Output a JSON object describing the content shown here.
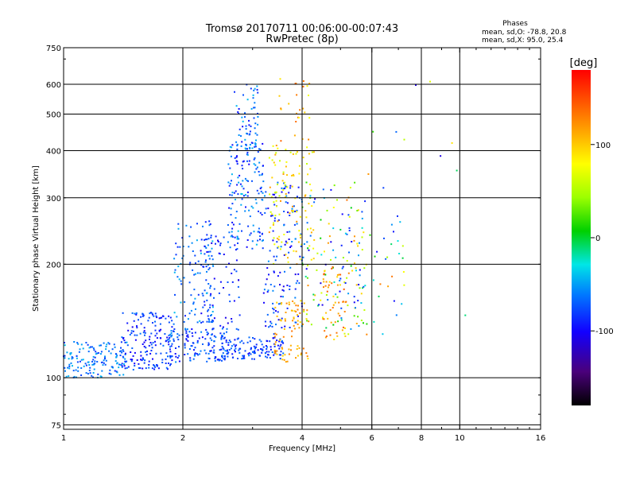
{
  "chart_data": {
    "type": "scatter",
    "title": "Tromsø 20170711 00:06:00-00:07:43",
    "subtitle": "RwPretec (8p)",
    "xlabel": "Frequency [MHz]",
    "ylabel": "Stationary phase Virtual Height [km]",
    "x_scale": "log",
    "y_scale": "log",
    "xlim": [
      1,
      16
    ],
    "ylim": [
      73,
      750
    ],
    "x_ticks": [
      1,
      2,
      4,
      6,
      8,
      10,
      16
    ],
    "x_tick_labels": [
      "1",
      "2",
      "4",
      "6",
      "8",
      "10",
      "16"
    ],
    "y_ticks": [
      75,
      100,
      200,
      300,
      400,
      500,
      600,
      750
    ],
    "y_tick_labels": [
      "75",
      "100",
      "200",
      "300",
      "400",
      "500",
      "600",
      "750"
    ],
    "grid": true,
    "stats": {
      "title": "Phases",
      "line1": "mean, sd,O: -78.8, 20.8",
      "line2": "mean, sd,X:  95.0, 25.4"
    },
    "colorbar": {
      "label": "[deg]",
      "range": [
        -180,
        180
      ],
      "ticks": [
        100,
        0,
        -100
      ],
      "tick_labels": [
        "100",
        "0",
        "-100"
      ]
    },
    "clusters": [
      {
        "x": [
          1.0,
          1.45
        ],
        "y": [
          100,
          125
        ],
        "phase": [
          -85,
          -40
        ],
        "count": 150
      },
      {
        "x": [
          1.4,
          1.9
        ],
        "y": [
          105,
          150
        ],
        "phase": [
          -105,
          -60
        ],
        "count": 170
      },
      {
        "x": [
          1.85,
          2.6
        ],
        "y": [
          110,
          135
        ],
        "phase": [
          -100,
          -50
        ],
        "count": 140
      },
      {
        "x": [
          2.5,
          3.6
        ],
        "y": [
          112,
          128
        ],
        "phase": [
          -100,
          -60
        ],
        "count": 130
      },
      {
        "x": [
          2.6,
          3.2
        ],
        "y": [
          220,
          420
        ],
        "phase": [
          -100,
          -40
        ],
        "count": 150
      },
      {
        "x": [
          2.7,
          3.1
        ],
        "y": [
          400,
          600
        ],
        "phase": [
          -100,
          -40
        ],
        "count": 60
      },
      {
        "x": [
          1.9,
          2.4
        ],
        "y": [
          140,
          260
        ],
        "phase": [
          -90,
          -40
        ],
        "count": 100
      },
      {
        "x": [
          2.2,
          2.8
        ],
        "y": [
          130,
          240
        ],
        "phase": [
          -110,
          -60
        ],
        "count": 90
      },
      {
        "x": [
          3.2,
          4.0
        ],
        "y": [
          130,
          330
        ],
        "phase": [
          -110,
          -50
        ],
        "count": 140
      },
      {
        "x": [
          3.3,
          4.3
        ],
        "y": [
          200,
          420
        ],
        "phase": [
          60,
          130
        ],
        "count": 110
      },
      {
        "x": [
          3.4,
          4.2
        ],
        "y": [
          110,
          160
        ],
        "phase": [
          100,
          140
        ],
        "count": 80
      },
      {
        "x": [
          4.0,
          5.8
        ],
        "y": [
          130,
          330
        ],
        "phase": [
          -110,
          140
        ],
        "count": 130
      },
      {
        "x": [
          4.5,
          5.2
        ],
        "y": [
          125,
          200
        ],
        "phase": [
          100,
          150
        ],
        "count": 50
      },
      {
        "x": [
          5.0,
          7.3
        ],
        "y": [
          130,
          250
        ],
        "phase": [
          -100,
          140
        ],
        "count": 45
      },
      {
        "x": [
          3.5,
          4.2
        ],
        "y": [
          420,
          620
        ],
        "phase": [
          80,
          150
        ],
        "count": 25
      },
      {
        "x": [
          5.5,
          11.5
        ],
        "y": [
          140,
          650
        ],
        "phase": [
          -110,
          140
        ],
        "count": 15
      }
    ]
  }
}
